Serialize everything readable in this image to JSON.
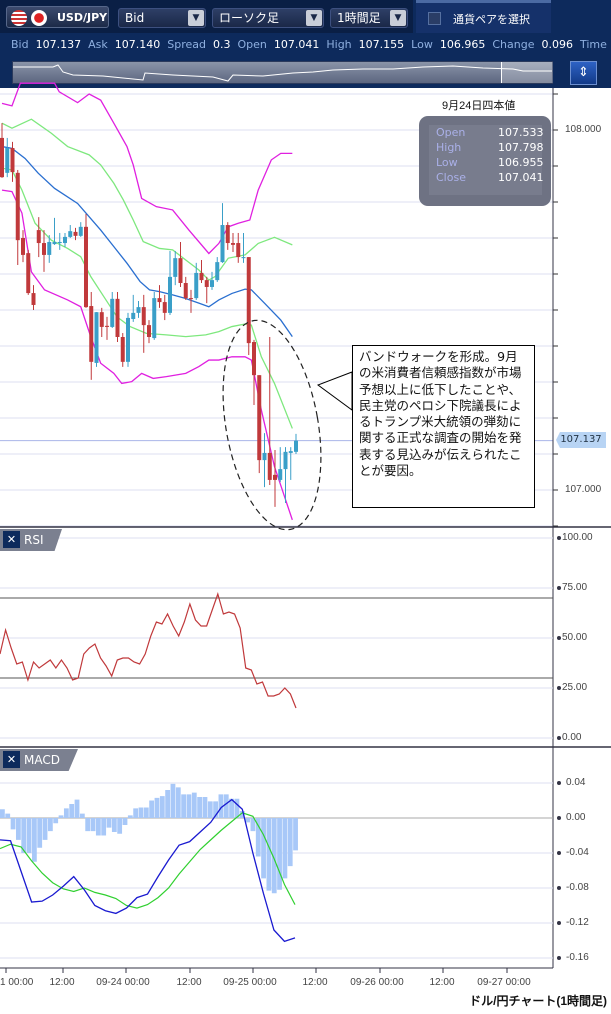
{
  "header": {
    "pair": "USD/JPY",
    "price_type": "Bid",
    "chart_type": "ローソク足",
    "timeframe": "1時間足",
    "select_pair_label": "通貨ペアを選択",
    "quote": [
      {
        "label": "Bid",
        "value": "107.137"
      },
      {
        "label": "Ask",
        "value": "107.140"
      },
      {
        "label": "Spread",
        "value": "0.3"
      },
      {
        "label": "Open",
        "value": "107.041"
      },
      {
        "label": "High",
        "value": "107.155"
      },
      {
        "label": "Low",
        "value": "106.965"
      },
      {
        "label": "Change",
        "value": "0.096"
      },
      {
        "label": "Time",
        "value": ""
      }
    ],
    "icons": {
      "flags": [
        "us-flag-icon",
        "japan-flag-icon"
      ],
      "dropdown": "chevron-down-icon",
      "lock": "lock-resize-icon"
    }
  },
  "ohlc_box": {
    "title": "9月24日四本値",
    "rows": [
      {
        "k": "Open",
        "v": "107.533"
      },
      {
        "k": "High",
        "v": "107.798"
      },
      {
        "k": "Low",
        "v": "106.955"
      },
      {
        "k": "Close",
        "v": "107.041"
      }
    ]
  },
  "annotation": "バンドウォークを形成。9月の米消費者信頼感指数が市場予想以上に低下したことや、民主党のペロシ下院議長によるトランプ米大統領の弾劾に関する正式な調査の開始を発表する見込みが伝えられたことが要因。",
  "current_price": "107.137",
  "caption": "ドル/円チャート(1時間足)",
  "colors": {
    "up": "#3a9fc8",
    "down": "#c0393b",
    "bb2": "#e020e0",
    "bb1": "#7ee87e",
    "ma": "#2a6fd0",
    "rsi": "#c0393b",
    "macd": "#1a1ad0",
    "signal": "#30d030",
    "hist": "#a8c8f8"
  },
  "chart_data": [
    {
      "type": "candlestick",
      "panel": "price",
      "ylim": [
        106.9,
        108.1
      ],
      "ytick_labels": [
        "108.000",
        "107.000"
      ],
      "grid": true,
      "candles_ohlc": [
        [
          107.978,
          108.019,
          107.867,
          107.869
        ],
        [
          107.881,
          107.978,
          107.869,
          107.95
        ],
        [
          107.95,
          107.967,
          107.856,
          107.883
        ],
        [
          107.881,
          107.889,
          107.625,
          107.694
        ],
        [
          107.7,
          107.722,
          107.633,
          107.653
        ],
        [
          107.658,
          107.667,
          107.542,
          107.547
        ],
        [
          107.547,
          107.569,
          107.5,
          107.514
        ],
        [
          107.722,
          107.758,
          107.647,
          107.686
        ],
        [
          107.686,
          107.722,
          107.606,
          107.653
        ],
        [
          107.653,
          107.708,
          107.631,
          107.689
        ],
        [
          107.683,
          107.756,
          107.681,
          107.689
        ],
        [
          107.686,
          107.714,
          107.667,
          107.689
        ],
        [
          107.686,
          107.714,
          107.675,
          107.703
        ],
        [
          107.703,
          107.736,
          107.7,
          107.719
        ],
        [
          107.717,
          107.728,
          107.694,
          107.706
        ],
        [
          107.706,
          107.744,
          107.703,
          107.731
        ],
        [
          107.731,
          107.767,
          107.506,
          107.508
        ],
        [
          107.511,
          107.55,
          107.306,
          107.356
        ],
        [
          107.353,
          107.494,
          107.342,
          107.494
        ],
        [
          107.494,
          107.506,
          107.425,
          107.453
        ],
        [
          107.456,
          107.481,
          107.417,
          107.453
        ],
        [
          107.453,
          107.55,
          107.45,
          107.531
        ],
        [
          107.531,
          107.55,
          107.411,
          107.425
        ],
        [
          107.425,
          107.436,
          107.342,
          107.356
        ],
        [
          107.356,
          107.492,
          107.342,
          107.478
        ],
        [
          107.475,
          107.542,
          107.467,
          107.492
        ],
        [
          107.492,
          107.525,
          107.478,
          107.508
        ],
        [
          107.508,
          107.542,
          107.381,
          107.458
        ],
        [
          107.458,
          107.472,
          107.408,
          107.425
        ],
        [
          107.422,
          107.55,
          107.417,
          107.533
        ],
        [
          107.533,
          107.569,
          107.506,
          107.522
        ],
        [
          107.522,
          107.542,
          107.472,
          107.492
        ],
        [
          107.492,
          107.664,
          107.486,
          107.592
        ],
        [
          107.592,
          107.664,
          107.569,
          107.644
        ],
        [
          107.644,
          107.689,
          107.564,
          107.575
        ],
        [
          107.575,
          107.592,
          107.528,
          107.533
        ],
        [
          107.533,
          107.556,
          107.492,
          107.531
        ],
        [
          107.533,
          107.631,
          107.528,
          107.603
        ],
        [
          107.603,
          107.639,
          107.575,
          107.583
        ],
        [
          107.583,
          107.592,
          107.519,
          107.564
        ],
        [
          107.564,
          107.606,
          107.556,
          107.583
        ],
        [
          107.583,
          107.647,
          107.578,
          107.633
        ],
        [
          107.633,
          107.797,
          107.631,
          107.736
        ],
        [
          107.736,
          107.744,
          107.667,
          107.686
        ],
        [
          107.686,
          107.714,
          107.661,
          107.681
        ],
        [
          107.686,
          107.714,
          107.631,
          107.647
        ],
        [
          107.644,
          107.714,
          107.631,
          107.647
        ],
        [
          107.647,
          107.647,
          107.375,
          107.408
        ],
        [
          107.411,
          107.417,
          107.236,
          107.319
        ],
        [
          107.319,
          107.319,
          107.047,
          107.083
        ],
        [
          107.083,
          107.158,
          107.008,
          107.103
        ],
        [
          107.103,
          107.425,
          107.014,
          107.028
        ],
        [
          107.042,
          107.111,
          106.953,
          107.028
        ],
        [
          107.028,
          107.119,
          107.022,
          107.058
        ],
        [
          107.058,
          107.119,
          106.964,
          107.106
        ],
        [
          107.103,
          107.119,
          107.028,
          107.108
        ],
        [
          107.106,
          107.156,
          107.1,
          107.137
        ]
      ],
      "bands_by_bar": {
        "upper2": [
          [
            0,
            108.074
          ],
          [
            1.9,
            108.067
          ],
          [
            3.5,
            108.13
          ],
          [
            10,
            108.13
          ],
          [
            10.9,
            108.106
          ],
          [
            14.4,
            108.076
          ],
          [
            16.6,
            108.1
          ],
          [
            18.8,
            108.083
          ],
          [
            21.3,
            108.019
          ],
          [
            23.8,
            107.954
          ],
          [
            25,
            107.903
          ],
          [
            26.6,
            107.81
          ],
          [
            29.4,
            107.787
          ],
          [
            32.5,
            107.778
          ],
          [
            35.6,
            107.722
          ],
          [
            39.4,
            107.657
          ],
          [
            41.3,
            107.685
          ],
          [
            43.1,
            107.731
          ],
          [
            45,
            107.741
          ],
          [
            47.2,
            107.75
          ],
          [
            48.8,
            107.833
          ],
          [
            51.3,
            107.917
          ],
          [
            53.1,
            107.935
          ],
          [
            55.3,
            107.935
          ]
        ],
        "upper1": [
          [
            0,
            108.019
          ],
          [
            1.9,
            108.005
          ],
          [
            5.6,
            108.03
          ],
          [
            9.4,
            107.991
          ],
          [
            12.5,
            107.954
          ],
          [
            16.6,
            107.931
          ],
          [
            18.8,
            107.903
          ],
          [
            21.3,
            107.852
          ],
          [
            23.1,
            107.806
          ],
          [
            25,
            107.75
          ],
          [
            26.9,
            107.69
          ],
          [
            30,
            107.671
          ],
          [
            32.5,
            107.667
          ],
          [
            35,
            107.639
          ],
          [
            37.5,
            107.611
          ],
          [
            39.4,
            107.583
          ],
          [
            40.6,
            107.593
          ],
          [
            43.1,
            107.644
          ],
          [
            46.3,
            107.653
          ],
          [
            48.8,
            107.685
          ],
          [
            51.9,
            107.702
          ],
          [
            55.3,
            107.681
          ]
        ],
        "middle": [
          [
            0,
            107.954
          ],
          [
            1.9,
            107.949
          ],
          [
            4.4,
            107.921
          ],
          [
            6.9,
            107.88
          ],
          [
            10,
            107.838
          ],
          [
            14.4,
            107.796
          ],
          [
            16.3,
            107.764
          ],
          [
            18.8,
            107.722
          ],
          [
            21.3,
            107.676
          ],
          [
            23.8,
            107.63
          ],
          [
            26.3,
            107.579
          ],
          [
            28.1,
            107.556
          ],
          [
            30,
            107.551
          ],
          [
            32.5,
            107.542
          ],
          [
            35,
            107.532
          ],
          [
            37.5,
            107.519
          ],
          [
            39.4,
            107.509
          ],
          [
            41.3,
            107.528
          ],
          [
            43.8,
            107.546
          ],
          [
            46.3,
            107.558
          ],
          [
            47.5,
            107.556
          ],
          [
            50,
            107.519
          ],
          [
            53.1,
            107.472
          ],
          [
            55.3,
            107.426
          ]
        ],
        "lower1": [
          [
            0,
            107.894
          ],
          [
            1.9,
            107.889
          ],
          [
            3.8,
            107.833
          ],
          [
            6.3,
            107.741
          ],
          [
            9.4,
            107.694
          ],
          [
            12.5,
            107.671
          ],
          [
            15,
            107.648
          ],
          [
            16.9,
            107.593
          ],
          [
            19.4,
            107.537
          ],
          [
            21.9,
            107.481
          ],
          [
            24.4,
            107.454
          ],
          [
            27.5,
            107.435
          ],
          [
            31.3,
            107.431
          ],
          [
            35,
            107.426
          ],
          [
            38.8,
            107.431
          ],
          [
            41.3,
            107.44
          ],
          [
            43.8,
            107.454
          ],
          [
            46.3,
            107.461
          ],
          [
            47.5,
            107.458
          ],
          [
            49.4,
            107.37
          ],
          [
            51.9,
            107.296
          ],
          [
            55.3,
            107.171
          ]
        ],
        "lower2": [
          [
            0,
            107.833
          ],
          [
            1.9,
            107.829
          ],
          [
            3.8,
            107.769
          ],
          [
            5.6,
            107.606
          ],
          [
            8.1,
            107.556
          ],
          [
            12.5,
            107.528
          ],
          [
            15,
            107.509
          ],
          [
            16.9,
            107.426
          ],
          [
            18.8,
            107.352
          ],
          [
            21.3,
            107.324
          ],
          [
            22.8,
            107.296
          ],
          [
            24.7,
            107.301
          ],
          [
            26.6,
            107.324
          ],
          [
            28.8,
            107.31
          ],
          [
            31.3,
            107.315
          ],
          [
            35,
            107.324
          ],
          [
            37.5,
            107.343
          ],
          [
            39.4,
            107.361
          ],
          [
            41.3,
            107.361
          ],
          [
            43.8,
            107.37
          ],
          [
            46.3,
            107.37
          ],
          [
            47.5,
            107.361
          ],
          [
            49.4,
            107.222
          ],
          [
            51.9,
            107.065
          ],
          [
            55.3,
            106.917
          ]
        ]
      }
    },
    {
      "type": "line",
      "panel": "RSI",
      "title": "RSI",
      "ylim": [
        0,
        100
      ],
      "ytick_labels": [
        "100.00",
        "75.00",
        "50.00",
        "25.00",
        "0.00"
      ],
      "levels": [
        70,
        30
      ],
      "values": [
        42,
        54,
        45,
        37,
        38,
        29,
        38,
        35,
        37,
        39,
        35,
        39,
        35,
        29,
        30,
        42,
        45,
        47,
        40,
        36,
        31,
        39,
        40,
        40,
        38,
        37,
        42,
        51,
        58,
        57,
        62,
        56,
        51,
        58,
        67,
        59,
        56,
        56,
        64,
        72,
        62,
        63,
        62,
        55,
        35,
        34,
        27,
        28,
        21,
        21,
        22,
        25,
        22,
        15
      ]
    },
    {
      "type": "line+bar",
      "panel": "MACD",
      "title": "MACD",
      "ylim": [
        -0.17,
        0.06
      ],
      "ytick_labels": [
        "0.04",
        "0.00",
        "-0.04",
        "-0.08",
        "-0.12",
        "-0.16"
      ],
      "macd": [
        -0.025,
        -0.026,
        -0.061,
        -0.096,
        -0.095,
        -0.088,
        -0.078,
        -0.067,
        -0.082,
        -0.1,
        -0.106,
        -0.109,
        -0.103,
        -0.091,
        -0.087,
        -0.067,
        -0.048,
        -0.031,
        -0.027,
        -0.016,
        -0.005,
        0.012,
        0.021,
        0.01,
        -0.04,
        -0.086,
        -0.128,
        -0.141,
        -0.137
      ],
      "signal": [
        -0.035,
        -0.03,
        -0.033,
        -0.049,
        -0.063,
        -0.074,
        -0.081,
        -0.084,
        -0.08,
        -0.085,
        -0.088,
        -0.092,
        -0.1,
        -0.103,
        -0.099,
        -0.091,
        -0.08,
        -0.064,
        -0.05,
        -0.036,
        -0.025,
        -0.014,
        -0.004,
        0.006,
        0.002,
        -0.019,
        -0.046,
        -0.076,
        -0.099
      ],
      "histogram": [
        0.01,
        0.005,
        -0.013,
        -0.025,
        -0.04,
        -0.04,
        -0.05,
        -0.034,
        -0.025,
        -0.015,
        -0.006,
        0.003,
        0.011,
        0.016,
        0.021,
        0.005,
        -0.015,
        -0.015,
        -0.02,
        -0.02,
        -0.011,
        -0.016,
        -0.018,
        -0.008,
        0.003,
        0.011,
        0.012,
        0.012,
        0.02,
        0.023,
        0.025,
        0.032,
        0.039,
        0.035,
        0.027,
        0.027,
        0.029,
        0.024,
        0.024,
        0.019,
        0.019,
        0.027,
        0.027,
        0.022,
        0.022,
        0.008,
        -0.005,
        -0.015,
        -0.044,
        -0.069,
        -0.083,
        -0.086,
        -0.082,
        -0.069,
        -0.055,
        -0.037
      ]
    },
    {
      "type": "axis",
      "x_tick_labels": [
        "1 00:00",
        "12:00",
        "09-24 00:00",
        "12:00",
        "09-25 00:00",
        "12:00",
        "09-26 00:00",
        "12:00",
        "09-27 00:00"
      ]
    }
  ]
}
